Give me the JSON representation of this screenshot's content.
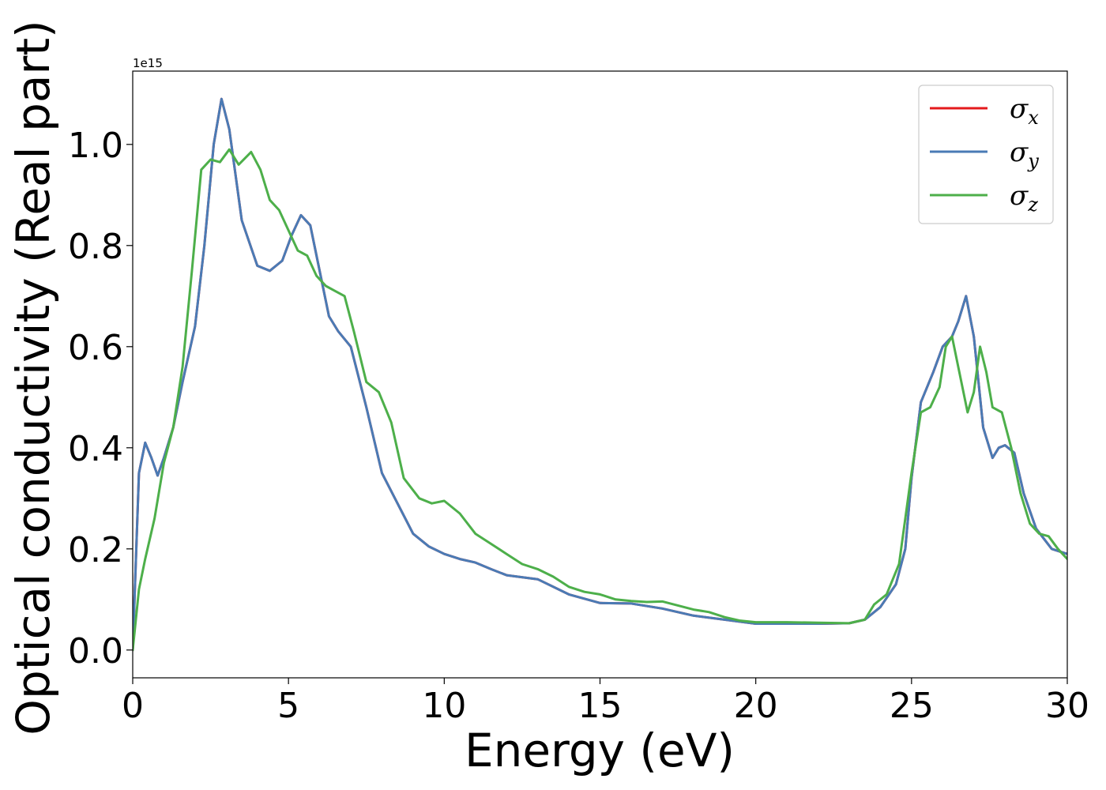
{
  "chart_data": {
    "type": "line",
    "xlabel": "Energy (eV)",
    "ylabel": "Optical conductivity (Real part)",
    "y_offset_label": "1e15",
    "xlim": [
      0,
      30
    ],
    "ylim": [
      -0.055,
      1.145
    ],
    "x_ticks": [
      0,
      5,
      10,
      15,
      20,
      25,
      30
    ],
    "y_ticks": [
      0.0,
      0.2,
      0.4,
      0.6,
      0.8,
      1.0
    ],
    "x_tick_labels": [
      "0",
      "5",
      "10",
      "15",
      "20",
      "25",
      "30"
    ],
    "y_tick_labels": [
      "0.0",
      "0.2",
      "0.4",
      "0.6",
      "0.8",
      "1.0"
    ],
    "grid": false,
    "legend_position": "top-right",
    "series": [
      {
        "name": "σx",
        "symbol": "σ",
        "subscript": "x",
        "color": "#e41a1c",
        "x": [
          0,
          0.2,
          0.4,
          0.6,
          0.8,
          1.0,
          1.3,
          1.6,
          2.0,
          2.3,
          2.6,
          2.85,
          3.1,
          3.5,
          4.0,
          4.4,
          4.8,
          5.1,
          5.4,
          5.7,
          6.0,
          6.3,
          6.6,
          7.0,
          7.5,
          8.0,
          8.5,
          9.0,
          9.5,
          10.0,
          10.5,
          11.0,
          11.5,
          12.0,
          13.0,
          14.0,
          15.0,
          16.0,
          17.0,
          18.0,
          19.0,
          20.0,
          21.0,
          22.0,
          23.0,
          23.5,
          24.0,
          24.5,
          24.8,
          25.0,
          25.3,
          25.7,
          26.0,
          26.3,
          26.5,
          26.75,
          27.0,
          27.3,
          27.6,
          27.8,
          28.0,
          28.3,
          28.6,
          29.0,
          29.5,
          30.0
        ],
        "y": [
          0.0,
          0.35,
          0.41,
          0.38,
          0.345,
          0.38,
          0.44,
          0.53,
          0.64,
          0.8,
          1.0,
          1.09,
          1.03,
          0.85,
          0.76,
          0.75,
          0.77,
          0.82,
          0.86,
          0.84,
          0.75,
          0.66,
          0.63,
          0.6,
          0.48,
          0.35,
          0.29,
          0.23,
          0.205,
          0.19,
          0.18,
          0.173,
          0.16,
          0.148,
          0.14,
          0.11,
          0.093,
          0.092,
          0.082,
          0.068,
          0.06,
          0.052,
          0.052,
          0.052,
          0.053,
          0.06,
          0.085,
          0.13,
          0.2,
          0.34,
          0.49,
          0.55,
          0.6,
          0.62,
          0.65,
          0.7,
          0.62,
          0.44,
          0.38,
          0.4,
          0.405,
          0.39,
          0.31,
          0.24,
          0.2,
          0.19
        ]
      },
      {
        "name": "σy",
        "symbol": "σ",
        "subscript": "y",
        "color": "#4a7bb5",
        "x": [
          0,
          0.2,
          0.4,
          0.6,
          0.8,
          1.0,
          1.3,
          1.6,
          2.0,
          2.3,
          2.6,
          2.85,
          3.1,
          3.5,
          4.0,
          4.4,
          4.8,
          5.1,
          5.4,
          5.7,
          6.0,
          6.3,
          6.6,
          7.0,
          7.5,
          8.0,
          8.5,
          9.0,
          9.5,
          10.0,
          10.5,
          11.0,
          11.5,
          12.0,
          13.0,
          14.0,
          15.0,
          16.0,
          17.0,
          18.0,
          19.0,
          20.0,
          21.0,
          22.0,
          23.0,
          23.5,
          24.0,
          24.5,
          24.8,
          25.0,
          25.3,
          25.7,
          26.0,
          26.3,
          26.5,
          26.75,
          27.0,
          27.3,
          27.6,
          27.8,
          28.0,
          28.3,
          28.6,
          29.0,
          29.5,
          30.0
        ],
        "y": [
          0.0,
          0.35,
          0.41,
          0.38,
          0.345,
          0.38,
          0.44,
          0.53,
          0.64,
          0.8,
          1.0,
          1.09,
          1.03,
          0.85,
          0.76,
          0.75,
          0.77,
          0.82,
          0.86,
          0.84,
          0.75,
          0.66,
          0.63,
          0.6,
          0.48,
          0.35,
          0.29,
          0.23,
          0.205,
          0.19,
          0.18,
          0.173,
          0.16,
          0.148,
          0.14,
          0.11,
          0.093,
          0.092,
          0.082,
          0.068,
          0.06,
          0.052,
          0.052,
          0.052,
          0.053,
          0.06,
          0.085,
          0.13,
          0.2,
          0.34,
          0.49,
          0.55,
          0.6,
          0.62,
          0.65,
          0.7,
          0.62,
          0.44,
          0.38,
          0.4,
          0.405,
          0.39,
          0.31,
          0.24,
          0.2,
          0.19
        ]
      },
      {
        "name": "σz",
        "symbol": "σ",
        "subscript": "z",
        "color": "#4daf4a",
        "x": [
          0,
          0.2,
          0.4,
          0.7,
          1.0,
          1.3,
          1.6,
          1.9,
          2.2,
          2.5,
          2.8,
          3.1,
          3.4,
          3.8,
          4.1,
          4.4,
          4.7,
          5.0,
          5.3,
          5.6,
          5.9,
          6.2,
          6.5,
          6.8,
          7.1,
          7.5,
          7.9,
          8.3,
          8.7,
          9.2,
          9.6,
          10.0,
          10.5,
          11.0,
          11.5,
          12.0,
          12.5,
          13.0,
          13.5,
          14.0,
          14.5,
          15.0,
          15.5,
          16.0,
          16.5,
          17.0,
          17.5,
          18.0,
          18.5,
          19.0,
          19.5,
          20.0,
          21.0,
          22.0,
          23.0,
          23.5,
          23.8,
          24.2,
          24.6,
          25.0,
          25.3,
          25.6,
          25.9,
          26.1,
          26.3,
          26.5,
          26.8,
          27.0,
          27.2,
          27.4,
          27.6,
          27.9,
          28.2,
          28.5,
          28.8,
          29.1,
          29.4,
          29.7,
          30.0
        ],
        "y": [
          0.0,
          0.12,
          0.18,
          0.26,
          0.37,
          0.44,
          0.56,
          0.75,
          0.95,
          0.97,
          0.965,
          0.99,
          0.96,
          0.985,
          0.95,
          0.89,
          0.87,
          0.83,
          0.79,
          0.78,
          0.74,
          0.72,
          0.71,
          0.7,
          0.63,
          0.53,
          0.51,
          0.45,
          0.34,
          0.3,
          0.29,
          0.295,
          0.27,
          0.23,
          0.21,
          0.19,
          0.17,
          0.16,
          0.145,
          0.125,
          0.115,
          0.11,
          0.1,
          0.097,
          0.095,
          0.096,
          0.088,
          0.08,
          0.075,
          0.065,
          0.058,
          0.055,
          0.055,
          0.054,
          0.053,
          0.06,
          0.09,
          0.11,
          0.17,
          0.35,
          0.47,
          0.48,
          0.52,
          0.6,
          0.62,
          0.56,
          0.47,
          0.51,
          0.6,
          0.55,
          0.48,
          0.47,
          0.4,
          0.31,
          0.25,
          0.23,
          0.225,
          0.2,
          0.18
        ]
      }
    ]
  }
}
